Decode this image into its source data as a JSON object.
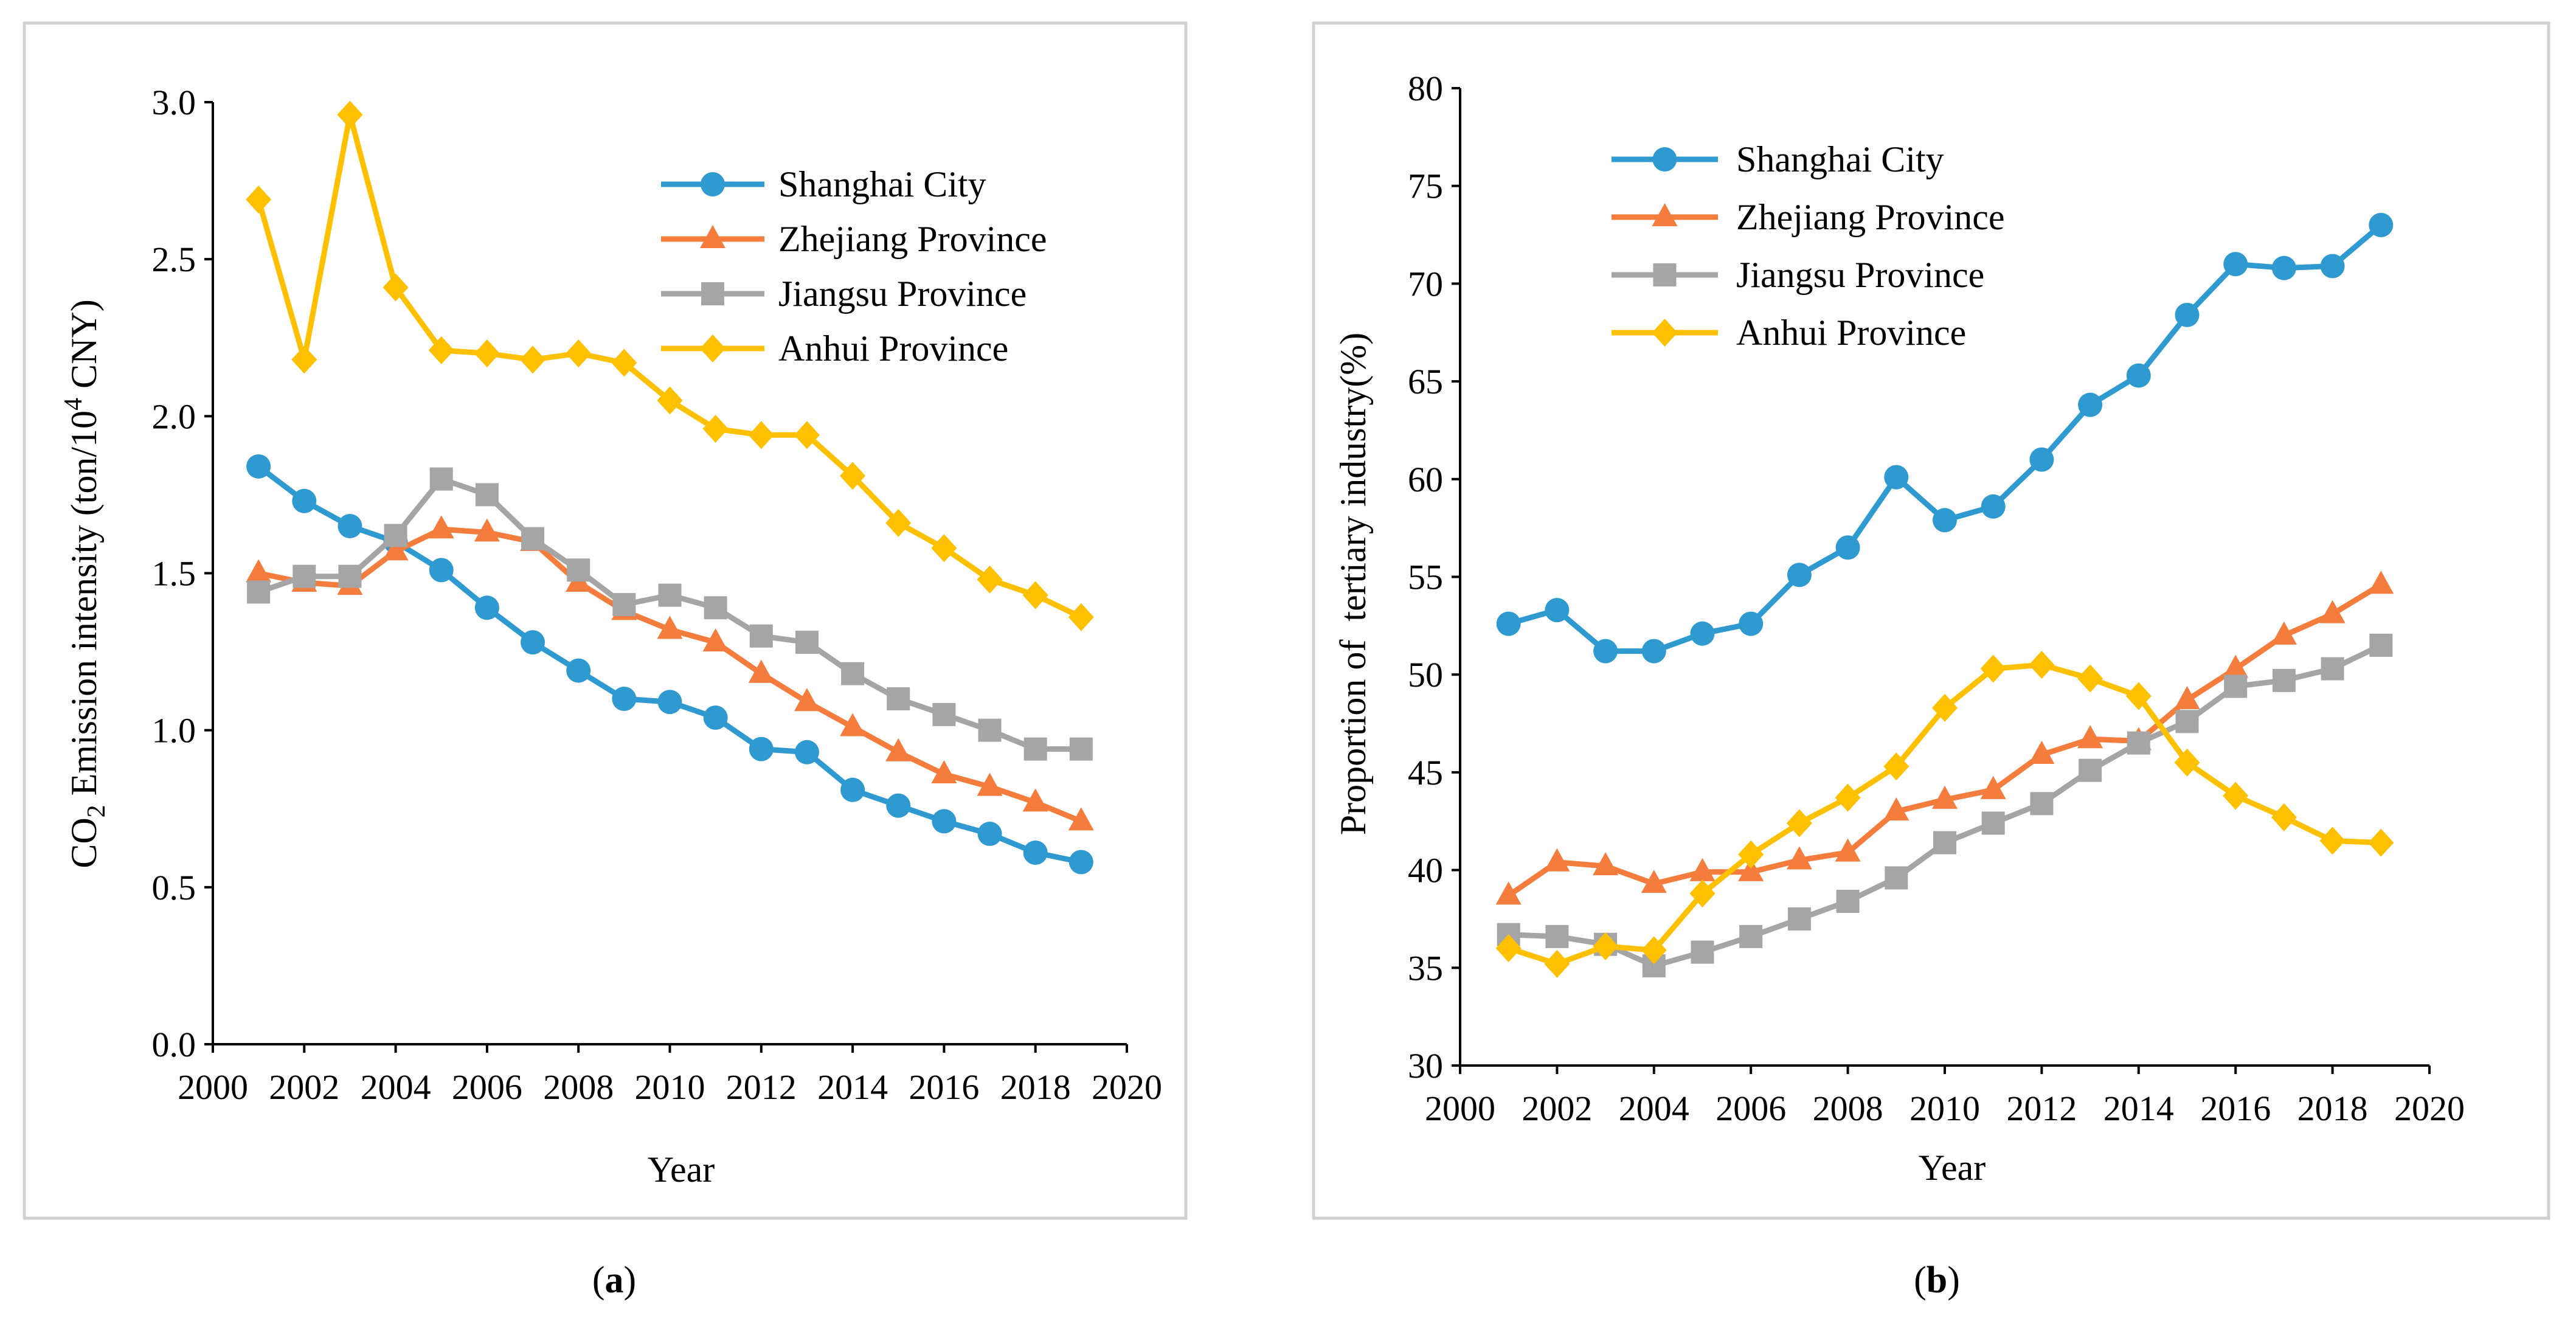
{
  "chart_data": [
    {
      "id": "a",
      "type": "line",
      "panel_label": "a",
      "title": "",
      "xlabel": "Year",
      "ylabel_prefix": "CO",
      "ylabel_sub": "2",
      "ylabel_mid": " Emission intensity (ton/10",
      "ylabel_sup": "4",
      "ylabel_suffix": " CNY)",
      "xlim": [
        2000,
        2020
      ],
      "ylim": [
        0.0,
        3.0
      ],
      "xticks": [
        "2000",
        "2002",
        "2004",
        "2006",
        "2008",
        "2010",
        "2012",
        "2014",
        "2016",
        "2018",
        "2020"
      ],
      "yticks": [
        "0.0",
        "0.5",
        "1.0",
        "1.5",
        "2.0",
        "2.5",
        "3.0"
      ],
      "legend_position": "top-right",
      "x": [
        2001,
        2002,
        2003,
        2004,
        2005,
        2006,
        2007,
        2008,
        2009,
        2010,
        2011,
        2012,
        2013,
        2014,
        2015,
        2016,
        2017,
        2018,
        2019
      ],
      "series": [
        {
          "name": "Shanghai City",
          "color": "#2E9AD0",
          "marker": "circle",
          "values": [
            1.84,
            1.73,
            1.65,
            1.6,
            1.51,
            1.39,
            1.28,
            1.19,
            1.1,
            1.09,
            1.04,
            0.94,
            0.93,
            0.81,
            0.76,
            0.71,
            0.67,
            0.61,
            0.58
          ]
        },
        {
          "name": "Zhejiang Province",
          "color": "#F47C3C",
          "marker": "triangle",
          "values": [
            1.5,
            1.47,
            1.46,
            1.57,
            1.64,
            1.63,
            1.6,
            1.47,
            1.38,
            1.32,
            1.28,
            1.18,
            1.09,
            1.01,
            0.93,
            0.86,
            0.82,
            0.77,
            0.71
          ]
        },
        {
          "name": "Jiangsu Province",
          "color": "#A5A5A5",
          "marker": "square",
          "values": [
            1.44,
            1.49,
            1.49,
            1.62,
            1.8,
            1.75,
            1.61,
            1.51,
            1.4,
            1.43,
            1.39,
            1.3,
            1.28,
            1.18,
            1.1,
            1.05,
            1.0,
            0.94,
            0.94
          ]
        },
        {
          "name": "Anhui Province",
          "color": "#FFC000",
          "marker": "diamond",
          "values": [
            2.69,
            2.18,
            2.96,
            2.41,
            2.21,
            2.2,
            2.18,
            2.2,
            2.17,
            2.05,
            1.96,
            1.94,
            1.94,
            1.81,
            1.66,
            1.58,
            1.48,
            1.43,
            1.36
          ]
        }
      ]
    },
    {
      "id": "b",
      "type": "line",
      "panel_label": "b",
      "title": "",
      "xlabel": "Year",
      "ylabel": "Proportion of  tertiary industry(%)",
      "xlim": [
        2000,
        2020
      ],
      "ylim": [
        30,
        80
      ],
      "xticks": [
        "2000",
        "2002",
        "2004",
        "2006",
        "2008",
        "2010",
        "2012",
        "2014",
        "2016",
        "2018",
        "2020"
      ],
      "yticks": [
        "30",
        "35",
        "40",
        "45",
        "50",
        "55",
        "60",
        "65",
        "70",
        "75",
        "80"
      ],
      "legend_position": "top-left",
      "x": [
        2001,
        2002,
        2003,
        2004,
        2005,
        2006,
        2007,
        2008,
        2009,
        2010,
        2011,
        2012,
        2013,
        2014,
        2015,
        2016,
        2017,
        2018,
        2019
      ],
      "series": [
        {
          "name": "Shanghai City",
          "color": "#2E9AD0",
          "marker": "circle",
          "values": [
            52.6,
            53.3,
            51.2,
            51.2,
            52.1,
            52.6,
            55.1,
            56.5,
            60.1,
            57.9,
            58.6,
            61.0,
            63.8,
            65.3,
            68.4,
            71.0,
            70.8,
            70.9,
            73.0
          ]
        },
        {
          "name": "Zhejiang Province",
          "color": "#F47C3C",
          "marker": "triangle",
          "values": [
            38.7,
            40.4,
            40.2,
            39.3,
            39.9,
            39.9,
            40.5,
            40.9,
            43.0,
            43.6,
            44.1,
            45.9,
            46.7,
            46.6,
            48.7,
            50.3,
            52.0,
            53.1,
            54.6
          ]
        },
        {
          "name": "Jiangsu Province",
          "color": "#A5A5A5",
          "marker": "square",
          "values": [
            36.7,
            36.6,
            36.2,
            35.1,
            35.8,
            36.6,
            37.5,
            38.4,
            39.6,
            41.4,
            42.4,
            43.4,
            45.1,
            46.5,
            47.6,
            49.4,
            49.7,
            50.3,
            51.5
          ]
        },
        {
          "name": "Anhui Province",
          "color": "#FFC000",
          "marker": "diamond",
          "values": [
            36.0,
            35.2,
            36.1,
            35.9,
            38.8,
            40.8,
            42.4,
            43.7,
            45.3,
            48.3,
            50.3,
            50.5,
            49.8,
            48.9,
            45.5,
            43.8,
            42.7,
            41.5,
            41.4
          ]
        }
      ]
    }
  ]
}
